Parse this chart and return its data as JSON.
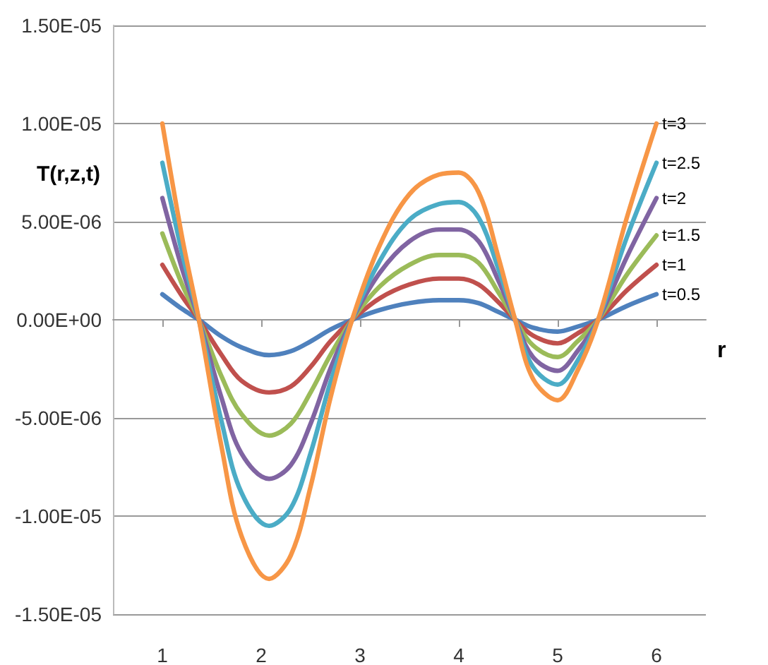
{
  "chart_data": {
    "type": "line",
    "xlabel": "r",
    "ylabel": "T(r,z,t)",
    "x": [
      1,
      1.2,
      1.37,
      1.6,
      1.8,
      2.08,
      2.3,
      2.5,
      2.7,
      2.92,
      3.2,
      3.5,
      3.8,
      4.0,
      4.2,
      4.4,
      4.57,
      4.75,
      5.0,
      5.2,
      5.41,
      5.7,
      6
    ],
    "series": [
      {
        "name": "t=0.5",
        "color": "#4f81bd",
        "values": [
          1.3e-06,
          5.5e-07,
          0,
          -8.5e-07,
          -1.4e-06,
          -1.8e-06,
          -1.6e-06,
          -1.1e-06,
          -5e-07,
          0,
          5e-07,
          8.5e-07,
          1e-06,
          1e-06,
          8.5e-07,
          4e-07,
          0,
          -4e-07,
          -6e-07,
          -3.5e-07,
          0,
          7e-07,
          1.3e-06
        ]
      },
      {
        "name": "t=1",
        "color": "#c0504d",
        "values": [
          2.8e-06,
          1.2e-06,
          0,
          -1.8e-06,
          -3.1e-06,
          -3.7e-06,
          -3.4e-06,
          -2.4e-06,
          -1.1e-06,
          0,
          1.1e-06,
          1.8e-06,
          2.1e-06,
          2.1e-06,
          1.8e-06,
          9e-07,
          0,
          -8e-07,
          -1.2e-06,
          -7e-07,
          0,
          1.5e-06,
          2.8e-06
        ]
      },
      {
        "name": "t=1.5",
        "color": "#9bbb59",
        "values": [
          4.4e-06,
          1.8e-06,
          0,
          -2.9e-06,
          -4.8e-06,
          -5.9e-06,
          -5.3e-06,
          -3.7e-06,
          -1.8e-06,
          0,
          1.7e-06,
          2.8e-06,
          3.3e-06,
          3.3e-06,
          2.9e-06,
          1.4e-06,
          0,
          -1.3e-06,
          -1.9e-06,
          -1.1e-06,
          0,
          2.3e-06,
          4.3e-06
        ]
      },
      {
        "name": "t=2",
        "color": "#8064a2",
        "values": [
          6.2e-06,
          2.6e-06,
          0,
          -4e-06,
          -6.8e-06,
          -8.1e-06,
          -7.4e-06,
          -5.3e-06,
          -2.5e-06,
          0,
          2.4e-06,
          4e-06,
          4.6e-06,
          4.6e-06,
          4e-06,
          2e-06,
          0,
          -1.9e-06,
          -2.6e-06,
          -1.6e-06,
          0,
          3.2e-06,
          6.2e-06
        ]
      },
      {
        "name": "t=2.5",
        "color": "#4bacc6",
        "values": [
          8e-06,
          3.4e-06,
          0,
          -5.2e-06,
          -8.8e-06,
          -1.05e-05,
          -9.6e-06,
          -6.8e-06,
          -3.2e-06,
          0,
          3e-06,
          5.1e-06,
          5.9e-06,
          6e-06,
          5.2e-06,
          2.6e-06,
          0,
          -2.4e-06,
          -3.3e-06,
          -2.1e-06,
          0,
          4.2e-06,
          8e-06
        ]
      },
      {
        "name": "t=3",
        "color": "#f79646",
        "values": [
          1e-05,
          4.2e-06,
          0,
          -6.5e-06,
          -1.1e-05,
          -1.32e-05,
          -1.2e-05,
          -8.5e-06,
          -4e-06,
          0,
          3.8e-06,
          6.4e-06,
          7.4e-06,
          7.5e-06,
          6.5e-06,
          3.2e-06,
          0,
          -3e-06,
          -4.1e-06,
          -2.6e-06,
          0,
          5.2e-06,
          1e-05
        ]
      }
    ],
    "xlim": [
      0.5,
      6.5
    ],
    "xticks": [
      1,
      2,
      3,
      4,
      5,
      6
    ],
    "ylim": [
      -1.5e-05,
      1.5e-05
    ],
    "yticks": [
      {
        "value": -1.5e-05,
        "label": "-1.50E-05"
      },
      {
        "value": -1e-05,
        "label": "-1.00E-05"
      },
      {
        "value": -5e-06,
        "label": "-5.00E-06"
      },
      {
        "value": 0,
        "label": "0.00E+00"
      },
      {
        "value": 5e-06,
        "label": "5.00E-06"
      },
      {
        "value": 1e-05,
        "label": "1.00E-05"
      },
      {
        "value": 1.5e-05,
        "label": "1.50E-05"
      }
    ],
    "grid": "y",
    "legend": false,
    "marker": "none",
    "line_style": "solid"
  }
}
